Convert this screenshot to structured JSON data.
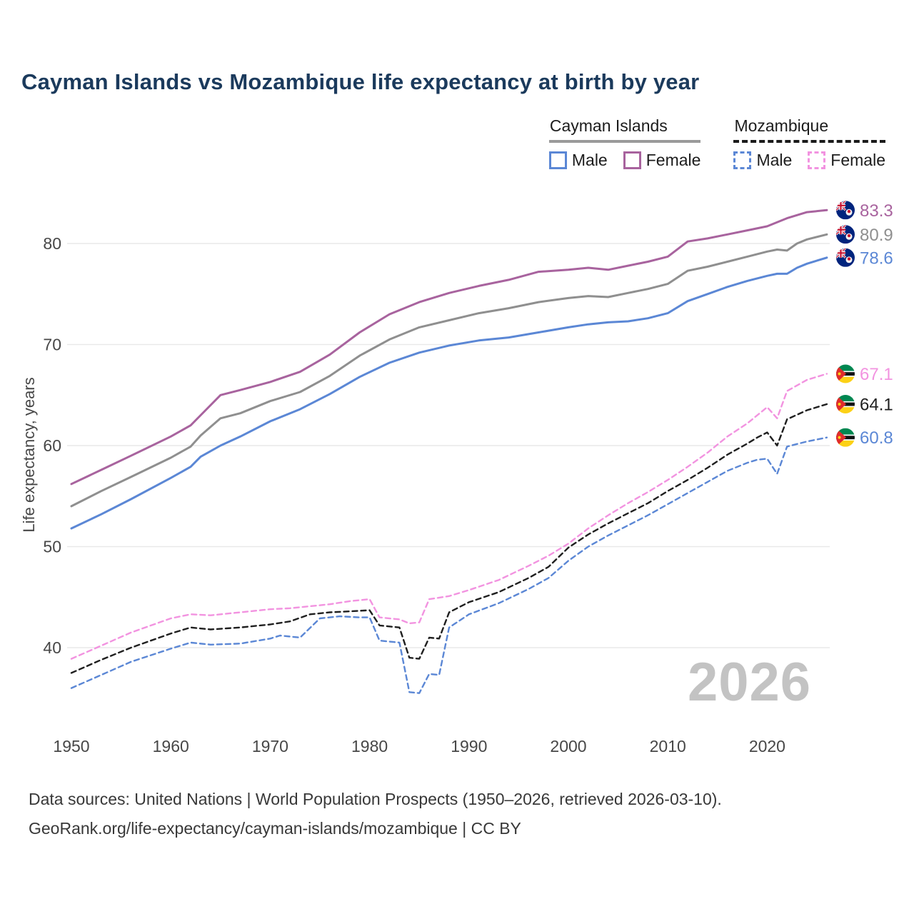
{
  "page": {
    "title": "Cayman Islands vs Mozambique life expectancy at birth by year",
    "watermark": "2026",
    "footer": {
      "line1": "Data sources: United Nations | World Population Prospects (1950–2026, retrieved 2026-03-10).",
      "line2": "GeoRank.org/life-expectancy/cayman-islands/mozambique | CC BY"
    }
  },
  "legend": {
    "groups": [
      {
        "label": "Cayman Islands",
        "line_style": "solid",
        "items": [
          {
            "label": "Male",
            "series": "cayman-islands-male"
          },
          {
            "label": "Female",
            "series": "cayman-islands-female"
          }
        ]
      },
      {
        "label": "Mozambique",
        "line_style": "dashed",
        "items": [
          {
            "label": "Male",
            "series": "mozambique-male"
          },
          {
            "label": "Female",
            "series": "mozambique-female"
          }
        ]
      }
    ]
  },
  "chart_data": {
    "type": "line",
    "title": "Cayman Islands vs Mozambique life expectancy at birth by year",
    "xlabel": "",
    "ylabel": "Life expectancy, years",
    "x_range": [
      1950,
      2026
    ],
    "ylim": [
      33,
      86
    ],
    "grid": "horizontal",
    "legend_position": "top-right",
    "x_axis": {
      "ticks": [
        1950,
        1960,
        1970,
        1980,
        1990,
        2000,
        2010,
        2020
      ]
    },
    "y_axis": {
      "ticks": [
        40,
        50,
        60,
        70,
        80
      ]
    },
    "series": [
      {
        "id": "cayman-islands-female",
        "name": "Cayman Islands — Female",
        "color": "#a8639e",
        "dashed": false,
        "end_label": "83.3",
        "flag": "cayman-islands-flag-icon",
        "points": [
          [
            1950,
            56.2
          ],
          [
            1953,
            57.6
          ],
          [
            1956,
            59.0
          ],
          [
            1960,
            60.9
          ],
          [
            1962,
            62.0
          ],
          [
            1963,
            63.0
          ],
          [
            1965,
            65.0
          ],
          [
            1967,
            65.5
          ],
          [
            1970,
            66.3
          ],
          [
            1973,
            67.3
          ],
          [
            1976,
            69.0
          ],
          [
            1979,
            71.2
          ],
          [
            1982,
            73.0
          ],
          [
            1985,
            74.2
          ],
          [
            1988,
            75.1
          ],
          [
            1991,
            75.8
          ],
          [
            1994,
            76.4
          ],
          [
            1997,
            77.2
          ],
          [
            2000,
            77.4
          ],
          [
            2002,
            77.6
          ],
          [
            2004,
            77.4
          ],
          [
            2006,
            77.8
          ],
          [
            2008,
            78.2
          ],
          [
            2010,
            78.7
          ],
          [
            2012,
            80.2
          ],
          [
            2014,
            80.5
          ],
          [
            2016,
            80.9
          ],
          [
            2018,
            81.3
          ],
          [
            2020,
            81.7
          ],
          [
            2022,
            82.5
          ],
          [
            2024,
            83.1
          ],
          [
            2026,
            83.3
          ]
        ]
      },
      {
        "id": "cayman-islands-both",
        "name": "Cayman Islands — Both sexes",
        "color": "#8f8f8f",
        "dashed": false,
        "end_label": "80.9",
        "flag": "cayman-islands-flag-icon",
        "points": [
          [
            1950,
            54.0
          ],
          [
            1953,
            55.5
          ],
          [
            1956,
            56.9
          ],
          [
            1960,
            58.8
          ],
          [
            1962,
            59.9
          ],
          [
            1963,
            61.0
          ],
          [
            1965,
            62.7
          ],
          [
            1967,
            63.2
          ],
          [
            1970,
            64.4
          ],
          [
            1973,
            65.3
          ],
          [
            1976,
            66.9
          ],
          [
            1979,
            68.9
          ],
          [
            1982,
            70.5
          ],
          [
            1985,
            71.7
          ],
          [
            1988,
            72.4
          ],
          [
            1991,
            73.1
          ],
          [
            1994,
            73.6
          ],
          [
            1997,
            74.2
          ],
          [
            2000,
            74.6
          ],
          [
            2002,
            74.8
          ],
          [
            2004,
            74.7
          ],
          [
            2006,
            75.1
          ],
          [
            2008,
            75.5
          ],
          [
            2010,
            76.0
          ],
          [
            2012,
            77.3
          ],
          [
            2014,
            77.7
          ],
          [
            2016,
            78.2
          ],
          [
            2018,
            78.7
          ],
          [
            2020,
            79.2
          ],
          [
            2021,
            79.4
          ],
          [
            2022,
            79.3
          ],
          [
            2023,
            80.0
          ],
          [
            2024,
            80.4
          ],
          [
            2026,
            80.9
          ]
        ]
      },
      {
        "id": "cayman-islands-male",
        "name": "Cayman Islands — Male",
        "color": "#5b87d5",
        "dashed": false,
        "end_label": "78.6",
        "flag": "cayman-islands-flag-icon",
        "points": [
          [
            1950,
            51.8
          ],
          [
            1953,
            53.2
          ],
          [
            1956,
            54.7
          ],
          [
            1960,
            56.8
          ],
          [
            1962,
            57.9
          ],
          [
            1963,
            58.9
          ],
          [
            1965,
            60.0
          ],
          [
            1967,
            60.9
          ],
          [
            1970,
            62.4
          ],
          [
            1973,
            63.6
          ],
          [
            1976,
            65.1
          ],
          [
            1979,
            66.8
          ],
          [
            1982,
            68.2
          ],
          [
            1985,
            69.2
          ],
          [
            1988,
            69.9
          ],
          [
            1991,
            70.4
          ],
          [
            1994,
            70.7
          ],
          [
            1997,
            71.2
          ],
          [
            2000,
            71.7
          ],
          [
            2002,
            72.0
          ],
          [
            2004,
            72.2
          ],
          [
            2006,
            72.3
          ],
          [
            2008,
            72.6
          ],
          [
            2010,
            73.1
          ],
          [
            2012,
            74.3
          ],
          [
            2014,
            75.0
          ],
          [
            2016,
            75.7
          ],
          [
            2018,
            76.3
          ],
          [
            2020,
            76.8
          ],
          [
            2021,
            77.0
          ],
          [
            2022,
            77.0
          ],
          [
            2023,
            77.6
          ],
          [
            2024,
            78.0
          ],
          [
            2026,
            78.6
          ]
        ]
      },
      {
        "id": "mozambique-female",
        "name": "Mozambique — Female",
        "color": "#f293e0",
        "dashed": true,
        "end_label": "67.1",
        "flag": "mozambique-flag-icon",
        "points": [
          [
            1950,
            38.9
          ],
          [
            1953,
            40.2
          ],
          [
            1956,
            41.5
          ],
          [
            1960,
            42.9
          ],
          [
            1962,
            43.3
          ],
          [
            1964,
            43.2
          ],
          [
            1967,
            43.5
          ],
          [
            1970,
            43.8
          ],
          [
            1972,
            43.9
          ],
          [
            1974,
            44.1
          ],
          [
            1976,
            44.3
          ],
          [
            1978,
            44.6
          ],
          [
            1980,
            44.8
          ],
          [
            1981,
            43.0
          ],
          [
            1983,
            42.8
          ],
          [
            1984,
            42.4
          ],
          [
            1985,
            42.5
          ],
          [
            1986,
            44.8
          ],
          [
            1988,
            45.1
          ],
          [
            1990,
            45.7
          ],
          [
            1993,
            46.7
          ],
          [
            1996,
            48.1
          ],
          [
            1998,
            49.1
          ],
          [
            2000,
            50.3
          ],
          [
            2002,
            51.8
          ],
          [
            2004,
            53.1
          ],
          [
            2006,
            54.3
          ],
          [
            2008,
            55.4
          ],
          [
            2010,
            56.6
          ],
          [
            2012,
            57.9
          ],
          [
            2014,
            59.3
          ],
          [
            2016,
            60.9
          ],
          [
            2018,
            62.2
          ],
          [
            2019,
            63.0
          ],
          [
            2020,
            63.8
          ],
          [
            2021,
            62.7
          ],
          [
            2022,
            65.4
          ],
          [
            2024,
            66.5
          ],
          [
            2026,
            67.1
          ]
        ]
      },
      {
        "id": "mozambique-both",
        "name": "Mozambique — Both sexes",
        "color": "#1f1f1f",
        "dashed": true,
        "end_label": "64.1",
        "flag": "mozambique-flag-icon",
        "points": [
          [
            1950,
            37.5
          ],
          [
            1953,
            38.8
          ],
          [
            1956,
            40.0
          ],
          [
            1960,
            41.4
          ],
          [
            1962,
            42.0
          ],
          [
            1964,
            41.8
          ],
          [
            1967,
            42.0
          ],
          [
            1970,
            42.3
          ],
          [
            1972,
            42.6
          ],
          [
            1974,
            43.3
          ],
          [
            1976,
            43.5
          ],
          [
            1978,
            43.6
          ],
          [
            1980,
            43.7
          ],
          [
            1981,
            42.2
          ],
          [
            1983,
            42.0
          ],
          [
            1984,
            39.0
          ],
          [
            1985,
            38.9
          ],
          [
            1986,
            41.0
          ],
          [
            1987,
            40.9
          ],
          [
            1988,
            43.5
          ],
          [
            1990,
            44.5
          ],
          [
            1993,
            45.5
          ],
          [
            1996,
            46.9
          ],
          [
            1998,
            48.0
          ],
          [
            2000,
            49.9
          ],
          [
            2002,
            51.2
          ],
          [
            2004,
            52.3
          ],
          [
            2006,
            53.3
          ],
          [
            2008,
            54.3
          ],
          [
            2010,
            55.5
          ],
          [
            2012,
            56.6
          ],
          [
            2014,
            57.8
          ],
          [
            2016,
            59.1
          ],
          [
            2018,
            60.2
          ],
          [
            2019,
            60.8
          ],
          [
            2020,
            61.3
          ],
          [
            2021,
            60.0
          ],
          [
            2022,
            62.6
          ],
          [
            2024,
            63.5
          ],
          [
            2026,
            64.1
          ]
        ]
      },
      {
        "id": "mozambique-male",
        "name": "Mozambique — Male",
        "color": "#5b87d5",
        "dashed": true,
        "end_label": "60.8",
        "flag": "mozambique-flag-icon",
        "points": [
          [
            1950,
            36.0
          ],
          [
            1953,
            37.3
          ],
          [
            1956,
            38.6
          ],
          [
            1960,
            39.9
          ],
          [
            1962,
            40.5
          ],
          [
            1964,
            40.3
          ],
          [
            1967,
            40.4
          ],
          [
            1970,
            40.9
          ],
          [
            1971,
            41.2
          ],
          [
            1973,
            41.0
          ],
          [
            1975,
            42.9
          ],
          [
            1977,
            43.1
          ],
          [
            1979,
            43.0
          ],
          [
            1980,
            43.0
          ],
          [
            1981,
            40.7
          ],
          [
            1983,
            40.5
          ],
          [
            1984,
            35.6
          ],
          [
            1985,
            35.5
          ],
          [
            1986,
            37.4
          ],
          [
            1987,
            37.3
          ],
          [
            1988,
            42.0
          ],
          [
            1990,
            43.3
          ],
          [
            1993,
            44.4
          ],
          [
            1996,
            45.8
          ],
          [
            1998,
            46.9
          ],
          [
            2000,
            48.6
          ],
          [
            2002,
            50.0
          ],
          [
            2004,
            51.1
          ],
          [
            2006,
            52.1
          ],
          [
            2008,
            53.1
          ],
          [
            2010,
            54.2
          ],
          [
            2012,
            55.3
          ],
          [
            2014,
            56.4
          ],
          [
            2016,
            57.5
          ],
          [
            2018,
            58.3
          ],
          [
            2019,
            58.6
          ],
          [
            2020,
            58.7
          ],
          [
            2021,
            57.2
          ],
          [
            2022,
            59.9
          ],
          [
            2024,
            60.4
          ],
          [
            2026,
            60.8
          ]
        ]
      }
    ]
  }
}
